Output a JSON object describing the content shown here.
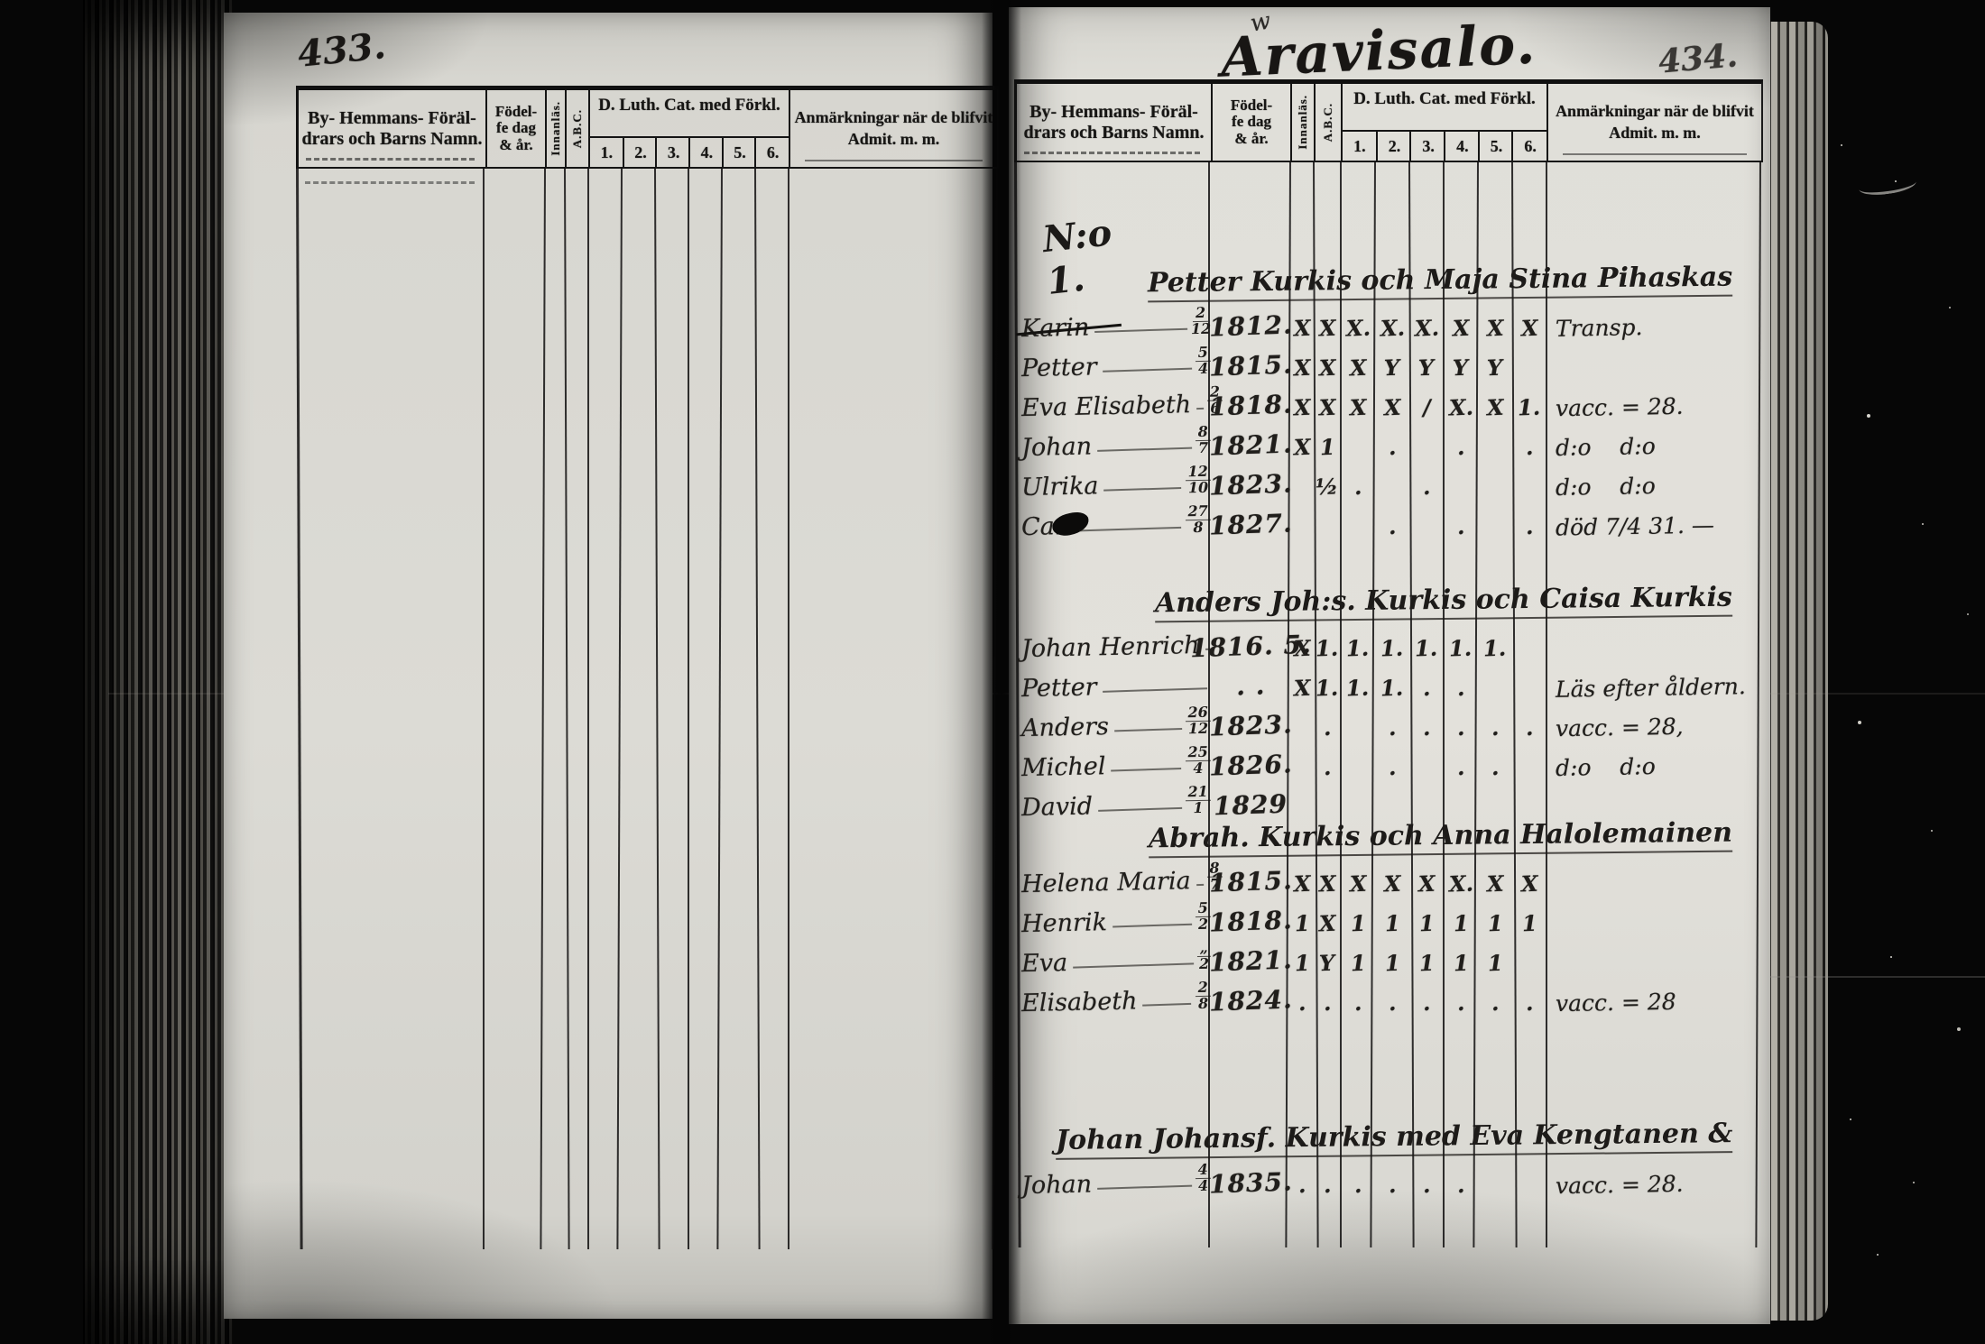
{
  "table_header": {
    "name_col": [
      "By- Hemmans- Föräl-",
      "drars och Barns Namn."
    ],
    "birth_col": [
      "Födel-",
      "fe dag",
      "& år."
    ],
    "reading_col": "Innanläs.",
    "abc_col": "A.B.C.",
    "catechism_col": "D. Luth. Cat. med Förkl.",
    "catechism_sub": [
      "1.",
      "2.",
      "3.",
      "4.",
      "5.",
      "6."
    ],
    "remarks_col": [
      "Anmärkningar när de blifvit",
      "Admit. m. m."
    ]
  },
  "left_page": {
    "page_number": "433."
  },
  "right_page": {
    "page_number": "434.",
    "title": "Aravisalo.",
    "title_flourish": "w",
    "families": [
      {
        "number": "N:o 1.",
        "title": "Petter Kurkis och Maja Stina Pihaskas",
        "children": [
          {
            "name": "Karin",
            "struck": true,
            "day": "2",
            "month": "12",
            "year": "1812.",
            "marks": [
              "X",
              "X",
              "X.",
              "X.",
              "X.",
              "X",
              "X",
              "X"
            ],
            "note": "Transp."
          },
          {
            "name": "Petter",
            "day": "5",
            "month": "4",
            "year": "1815.",
            "marks": [
              "X",
              "X",
              "X",
              "Y",
              "Y",
              "Y",
              "Y",
              ""
            ],
            "note": ""
          },
          {
            "name": "Eva Elisabeth",
            "day": "2",
            "month": "6",
            "year": "1818.",
            "marks": [
              "X",
              "X",
              "X",
              "X",
              "/",
              "X.",
              "X",
              "1."
            ],
            "note": "vacc. = 28."
          },
          {
            "name": "Johan",
            "day": "8",
            "month": "7",
            "year": "1821.",
            "marks": [
              "X",
              "1",
              "",
              ".",
              "",
              ".",
              "",
              "."
            ],
            "note": "d:o    d:o"
          },
          {
            "name": "Ulrika",
            "day": "12",
            "month": "10",
            "year": "1823.",
            "marks": [
              "",
              "½",
              ".",
              "",
              ".",
              "",
              "",
              ""
            ],
            "note": "d:o    d:o"
          },
          {
            "name": "Carl",
            "blotted": true,
            "day": "27",
            "month": "8",
            "year": "1827.",
            "marks": [
              "",
              "",
              "",
              ".",
              "",
              ".",
              "",
              "."
            ],
            "note": "död 7/4 31. —"
          }
        ]
      },
      {
        "number": "",
        "title": "Anders Joh:s. Kurkis och Caisa Kurkis",
        "children": [
          {
            "name": "Johan Henrich",
            "day": "",
            "month": "",
            "year": "1816. 5.",
            "marks": [
              "X",
              "1.",
              "1.",
              "1.",
              "1.",
              "1.",
              "1.",
              ""
            ],
            "note": ""
          },
          {
            "name": "Petter",
            "day": "",
            "month": "",
            "year": ". .",
            "marks": [
              "X",
              "1.",
              "1.",
              "1.",
              ".",
              ".",
              "",
              ""
            ],
            "note": "Läs efter åldern."
          },
          {
            "name": "Anders",
            "day": "26",
            "month": "12",
            "year": "1823.",
            "marks": [
              "",
              ".",
              "",
              ".",
              ".",
              ".",
              ".",
              "."
            ],
            "note": "vacc. = 28,"
          },
          {
            "name": "Michel",
            "day": "25",
            "month": "4",
            "year": "1826.",
            "marks": [
              "",
              ".",
              "",
              ".",
              "",
              ".",
              ".",
              ""
            ],
            "note": "d:o    d:o"
          },
          {
            "name": "David",
            "day": "21",
            "month": "1",
            "year": "1829",
            "marks": [
              "",
              "",
              "",
              "",
              "",
              "",
              "",
              ""
            ],
            "note": ""
          }
        ]
      },
      {
        "number": "",
        "title": "Abrah. Kurkis och Anna Halolemainen",
        "children": [
          {
            "name": "Helena Maria",
            "day": "8",
            "month": "7",
            "year": "1815.",
            "marks": [
              "X",
              "X",
              "X",
              "X",
              "X",
              "X.",
              "X",
              "X"
            ],
            "note": ""
          },
          {
            "name": "Henrik",
            "day": "5",
            "month": "2",
            "year": "1818.",
            "marks": [
              "1",
              "X",
              "1",
              "1",
              "1",
              "1",
              "1",
              "1"
            ],
            "note": ""
          },
          {
            "name": "Eva",
            "day": "„",
            "month": "2",
            "year": "1821.",
            "marks": [
              "1",
              "Y",
              "1",
              "1",
              "1",
              "1",
              "1",
              ""
            ],
            "note": ""
          },
          {
            "name": "Elisabeth",
            "day": "2",
            "month": "8",
            "year": "1824.",
            "marks": [
              ".",
              ".",
              ".",
              ".",
              ".",
              ".",
              ".",
              "."
            ],
            "note": "vacc. = 28"
          }
        ]
      },
      {
        "number": "",
        "title": "Johan Johansf. Kurkis med Eva Kengtanen &",
        "children": [
          {
            "name": "Johan",
            "day": "4",
            "month": "4",
            "year": "1835.",
            "marks": [
              ".",
              ".",
              ".",
              ".",
              ".",
              ".",
              "",
              ""
            ],
            "note": "vacc. = 28."
          }
        ]
      }
    ]
  }
}
